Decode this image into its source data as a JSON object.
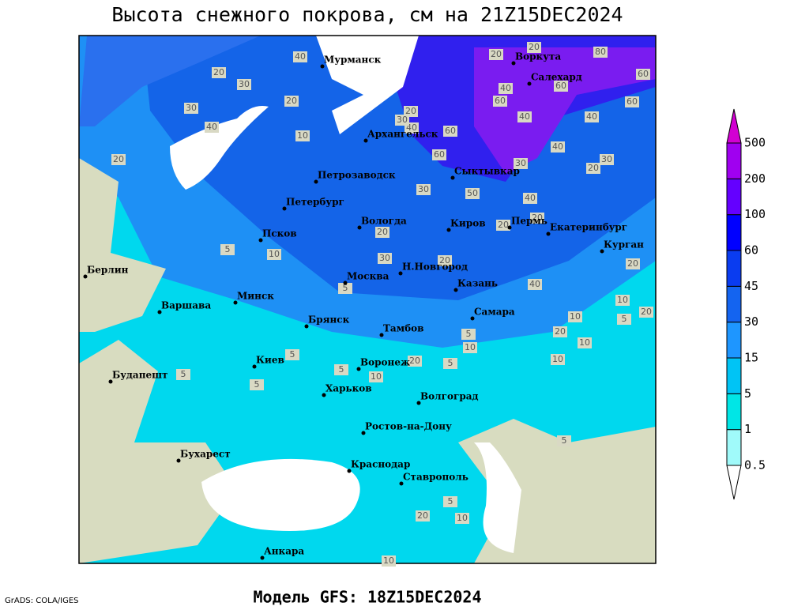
{
  "title": "Высота снежного покрова, см на 21Z15DEC2024",
  "footer": "Модель GFS: 18Z15DEC2024",
  "credit": "GrADS: COLA/IGES",
  "colorbar": {
    "levels": [
      0.5,
      1,
      5,
      15,
      30,
      45,
      60,
      100,
      200,
      500
    ],
    "colors": [
      "#ffffff",
      "#a0fafa",
      "#00e6e6",
      "#00c4f5",
      "#1e96ff",
      "#1464f0",
      "#0a3cf0",
      "#0000ff",
      "#6400ff",
      "#a000f0",
      "#d200d2"
    ]
  },
  "cities": [
    "Мурманск",
    "Воркута",
    "Салехард",
    "Архангельск",
    "Сыктывкар",
    "Петрозаводск",
    "Петербург",
    "Вологда",
    "Киров",
    "Пермь",
    "Екатеринбург",
    "Курган",
    "Псков",
    "Берлин",
    "Москва",
    "Н.Новгород",
    "Казань",
    "Минск",
    "Варшава",
    "Самара",
    "Брянск",
    "Тамбов",
    "Воронеж",
    "Киев",
    "Будапешт",
    "Харьков",
    "Волгоград",
    "Ростов-на-Дону",
    "Бухарест",
    "Краснодар",
    "Ставрополь",
    "Анкара"
  ],
  "contour_labels": [
    40,
    20,
    30,
    30,
    20,
    40,
    10,
    20,
    20,
    40,
    30,
    60,
    60,
    40,
    60,
    40,
    40,
    40,
    30,
    20,
    30,
    30,
    50,
    40,
    20,
    20,
    20,
    30,
    20,
    40,
    10,
    20,
    10,
    20,
    5,
    10,
    10,
    10,
    5,
    20,
    10,
    5,
    5,
    5,
    5,
    5,
    10,
    5,
    5,
    10,
    20,
    10,
    20,
    20,
    80,
    60,
    60,
    60,
    5,
    5,
    20
  ]
}
